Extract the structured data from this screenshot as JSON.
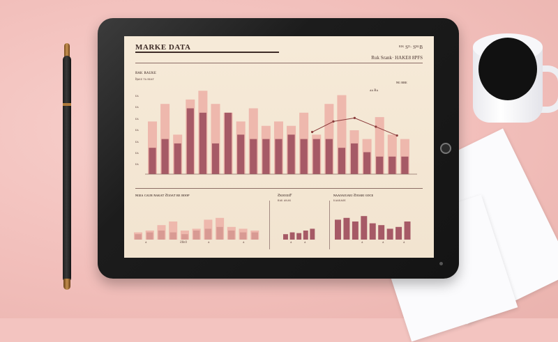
{
  "screen": {
    "title": "MARKE DATA",
    "top_right": "ᴿᴵᴷ Sᴰ· SᴮᴸB",
    "top_right_sub": "Ruk Srank· HAKE8 8PFS",
    "section_subtitle": "ʀᴀᴋ ʀᴀᴜᴋᴇ",
    "section_note": "Ʀᴀᴋᴇ ᴛᴀ ʀᴇᴀᴛ",
    "y_ticks": [
      "ᴇᴀ",
      "ᴇᴀ",
      "ᴇᴀ",
      "ᴇᴀ",
      "ᴇᴀ",
      "ᴇᴀ",
      "ᴇᴀ"
    ],
    "legend_right": "ɴɢ ʀʀᴇ",
    "annotation": "ᴀᴀ Ɍᴀ",
    "panel1_label": "ɴɢᴇᴀ ᴄᴀᴜʀ ɴᴀᴋᴀᴛ Ƨɢᴏᴀᴛ ʀᴇ ʙᴏᴏᴘ",
    "panel2_label": "ƧᴋɪᴏɪɜɪF",
    "panel2_sub": "ʀᴀᴋ ᴀᴋᴀᴋ",
    "panel3_label": "ɴᴀᴀᴏᴀɪᴜᴀᴇɪ Ƨᴏɪᴀʀɪ ɢᴏᴄᴇ",
    "panel3_sub": "ᴋᴀᴀᴋᴀᴏᴇ",
    "panel1_xlabels": [
      "ᴀ",
      "ᴇᴀᴀ",
      "ᴀ",
      "ᴀ"
    ],
    "panel1_xlabel_mid": "Ƨ8ᴇ0",
    "panel2_xlabels": [
      "ᴀ",
      "ᴀ"
    ],
    "panel3_xlabels": [
      "ᴀ",
      "ᴀ",
      "ᴀ"
    ]
  },
  "chart_data": [
    {
      "type": "bar",
      "title": "MARKE DATA",
      "series": [
        {
          "name": "light",
          "values": [
            60,
            80,
            45,
            85,
            95,
            80,
            70,
            60,
            75,
            55,
            60,
            55,
            70,
            45,
            80,
            90,
            50,
            40,
            65,
            45,
            40
          ]
        },
        {
          "name": "dark",
          "values": [
            30,
            40,
            35,
            75,
            70,
            35,
            70,
            45,
            40,
            40,
            40,
            45,
            40,
            40,
            40,
            30,
            35,
            25,
            20,
            20,
            20
          ]
        }
      ],
      "trend": [
        [
          0.62,
          0.52
        ],
        [
          0.7,
          0.4
        ],
        [
          0.78,
          0.36
        ],
        [
          0.86,
          0.46
        ],
        [
          0.94,
          0.56
        ]
      ],
      "ylim": [
        0,
        100
      ]
    },
    {
      "type": "bar",
      "series": [
        {
          "name": "light",
          "values": [
            20,
            25,
            40,
            50,
            25,
            30,
            55,
            60,
            35,
            30,
            25
          ]
        },
        {
          "name": "dark",
          "values": [
            15,
            20,
            25,
            20,
            15,
            25,
            30,
            35,
            25,
            20,
            20
          ]
        }
      ],
      "ylim": [
        0,
        100
      ]
    },
    {
      "type": "bar",
      "series": [
        {
          "name": "dark",
          "values": [
            15,
            20,
            18,
            25,
            30
          ]
        }
      ],
      "ylim": [
        0,
        100
      ]
    },
    {
      "type": "bar",
      "series": [
        {
          "name": "dark",
          "values": [
            55,
            60,
            50,
            65,
            45,
            40,
            30,
            35,
            50
          ]
        }
      ],
      "ylim": [
        0,
        100
      ]
    }
  ],
  "colors": {
    "light": "#eeb8ad",
    "dark": "#a65a66",
    "mid": "#d89a93",
    "trend": "#8a3b3b"
  }
}
